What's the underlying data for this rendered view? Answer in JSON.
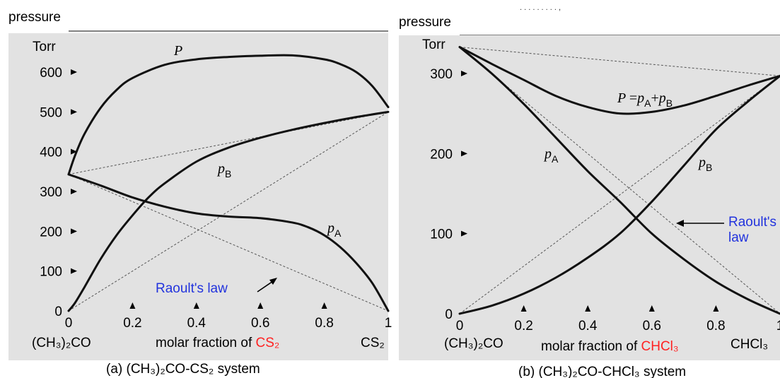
{
  "colors": {
    "plot_background": "#e2e2e2",
    "curve": "#111111",
    "raoult_label": "#2233dd",
    "component_highlight": "#ff2222"
  },
  "top_text": ". . .  .  .   .   .  .   .   ,",
  "chart_data": [
    {
      "type": "line",
      "panel_label": "(a)",
      "ylabel": "pressure",
      "yunit": "Torr",
      "yticks": [
        0,
        100,
        200,
        300,
        400,
        500,
        600
      ],
      "ylim": [
        0,
        690
      ],
      "xlim": [
        0,
        1
      ],
      "xtick_labels": [
        "0",
        "0.2",
        "0.4",
        "0.6",
        "0.8",
        "1"
      ],
      "xtick_values": [
        0,
        0.2,
        0.4,
        0.6,
        0.8,
        1
      ],
      "x_left_label": "(CH₃)₂CO",
      "x_right_label": "CS₂",
      "x_axis_prefix": "molar fraction of ",
      "x_axis_component": "CS₂",
      "caption": "(a) (CH₃)₂CO-CS₂ system",
      "raoult_label": "Raoult's law",
      "series": [
        {
          "name": "P",
          "x": [
            0,
            0.02,
            0.05,
            0.1,
            0.15,
            0.2,
            0.3,
            0.4,
            0.5,
            0.6,
            0.7,
            0.8,
            0.85,
            0.9,
            0.95,
            1.0
          ],
          "y": [
            343,
            390,
            445,
            510,
            555,
            585,
            618,
            632,
            638,
            641,
            642,
            632,
            620,
            600,
            565,
            512
          ]
        },
        {
          "name": "pB",
          "x": [
            0,
            0.02,
            0.05,
            0.1,
            0.15,
            0.2,
            0.25,
            0.3,
            0.4,
            0.5,
            0.6,
            0.7,
            0.8,
            0.9,
            1.0
          ],
          "y": [
            0,
            20,
            60,
            130,
            190,
            240,
            285,
            320,
            375,
            410,
            435,
            455,
            472,
            487,
            500
          ]
        },
        {
          "name": "pA",
          "x": [
            0,
            0.1,
            0.2,
            0.3,
            0.4,
            0.5,
            0.6,
            0.7,
            0.75,
            0.8,
            0.85,
            0.9,
            0.95,
            1.0
          ],
          "y": [
            343,
            315,
            285,
            262,
            245,
            237,
            233,
            222,
            210,
            190,
            160,
            120,
            70,
            0
          ]
        }
      ],
      "raoult_lines": [
        {
          "x": [
            0,
            1
          ],
          "y": [
            343,
            500
          ]
        },
        {
          "x": [
            0,
            1
          ],
          "y": [
            0,
            500
          ]
        },
        {
          "x": [
            0,
            1
          ],
          "y": [
            343,
            0
          ]
        }
      ]
    },
    {
      "type": "line",
      "panel_label": "(b)",
      "ylabel": "pressure",
      "yunit": "Torr",
      "yticks": [
        0,
        100,
        200,
        300
      ],
      "ylim": [
        0,
        343
      ],
      "xlim": [
        0,
        1
      ],
      "xtick_labels": [
        "0",
        "0.2",
        "0.4",
        "0.6",
        "0.8",
        "1"
      ],
      "xtick_values": [
        0,
        0.2,
        0.4,
        0.6,
        0.8,
        1
      ],
      "x_left_label": "(CH₃)₂CO",
      "x_right_label": "CHCl₃",
      "x_axis_prefix": "molar fraction of ",
      "x_axis_component": "CHCl₃",
      "caption": "(b) (CH₃)₂CO-CHCl₃ system",
      "raoult_label_line1": "Raoult's",
      "raoult_label_line2": "law",
      "total_label": "P =pA+pB",
      "series": [
        {
          "name": "P",
          "x": [
            0,
            0.1,
            0.2,
            0.3,
            0.4,
            0.5,
            0.6,
            0.7,
            0.8,
            0.9,
            1.0
          ],
          "y": [
            333,
            312,
            292,
            272,
            258,
            250,
            252,
            260,
            272,
            285,
            297
          ]
        },
        {
          "name": "pA",
          "x": [
            0,
            0.1,
            0.2,
            0.3,
            0.4,
            0.5,
            0.6,
            0.7,
            0.8,
            0.9,
            1.0
          ],
          "y": [
            333,
            300,
            262,
            220,
            178,
            140,
            100,
            68,
            40,
            18,
            0
          ]
        },
        {
          "name": "pB",
          "x": [
            0,
            0.1,
            0.2,
            0.3,
            0.4,
            0.5,
            0.6,
            0.7,
            0.8,
            0.9,
            1.0
          ],
          "y": [
            0,
            10,
            25,
            45,
            70,
            100,
            140,
            185,
            230,
            265,
            297
          ]
        }
      ],
      "raoult_lines": [
        {
          "x": [
            0,
            1
          ],
          "y": [
            333,
            297
          ]
        },
        {
          "x": [
            0,
            1
          ],
          "y": [
            0,
            297
          ]
        },
        {
          "x": [
            0,
            1
          ],
          "y": [
            333,
            0
          ]
        }
      ]
    }
  ]
}
